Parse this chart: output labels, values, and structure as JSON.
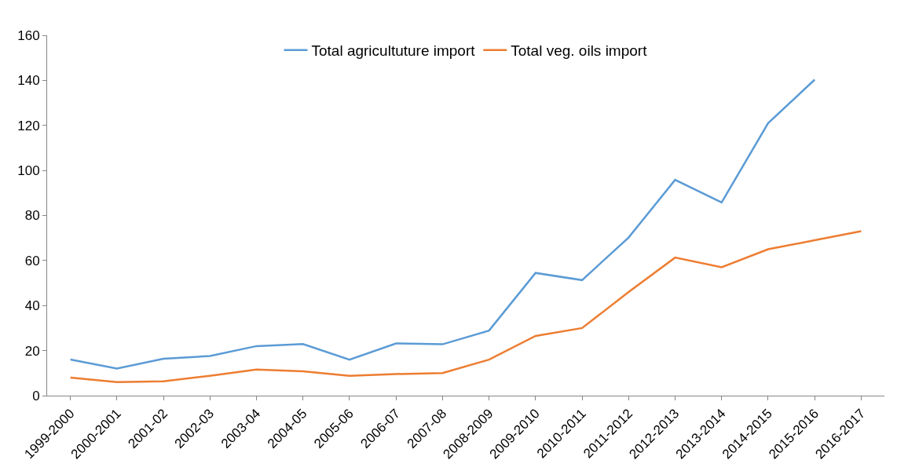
{
  "chart_data": {
    "type": "line",
    "categories": [
      "1999-2000",
      "2000-2001",
      "2001-02",
      "2002-03",
      "2003-04",
      "2004-05",
      "2005-06",
      "2006-07",
      "2007-08",
      "2008-2009",
      "2009-2010",
      "2010-2011",
      "2011-2012",
      "2012-2013",
      "2013-2014",
      "2014-2015",
      "2015-2016",
      "2016-2017"
    ],
    "series": [
      {
        "name": "Total agricultuture import",
        "color": "#5b9bd5",
        "values": [
          16,
          12,
          16.4,
          17.6,
          22,
          22.9,
          16,
          23.2,
          22.8,
          28.9,
          54.5,
          51.3,
          70.2,
          95.8,
          85.8,
          121,
          140.3,
          null
        ]
      },
      {
        "name": "Total veg. oils import",
        "color": "#ed7d31",
        "values": [
          8,
          6,
          6.4,
          8.8,
          11.6,
          10.8,
          8.8,
          9.6,
          10,
          16,
          26.5,
          30,
          46,
          61.3,
          57,
          65,
          69,
          73
        ]
      }
    ],
    "ylim": [
      0,
      160
    ],
    "yticks": [
      0,
      20,
      40,
      60,
      80,
      100,
      120,
      140,
      160
    ],
    "legend": "top",
    "marker": "none",
    "line_style": "solid"
  }
}
